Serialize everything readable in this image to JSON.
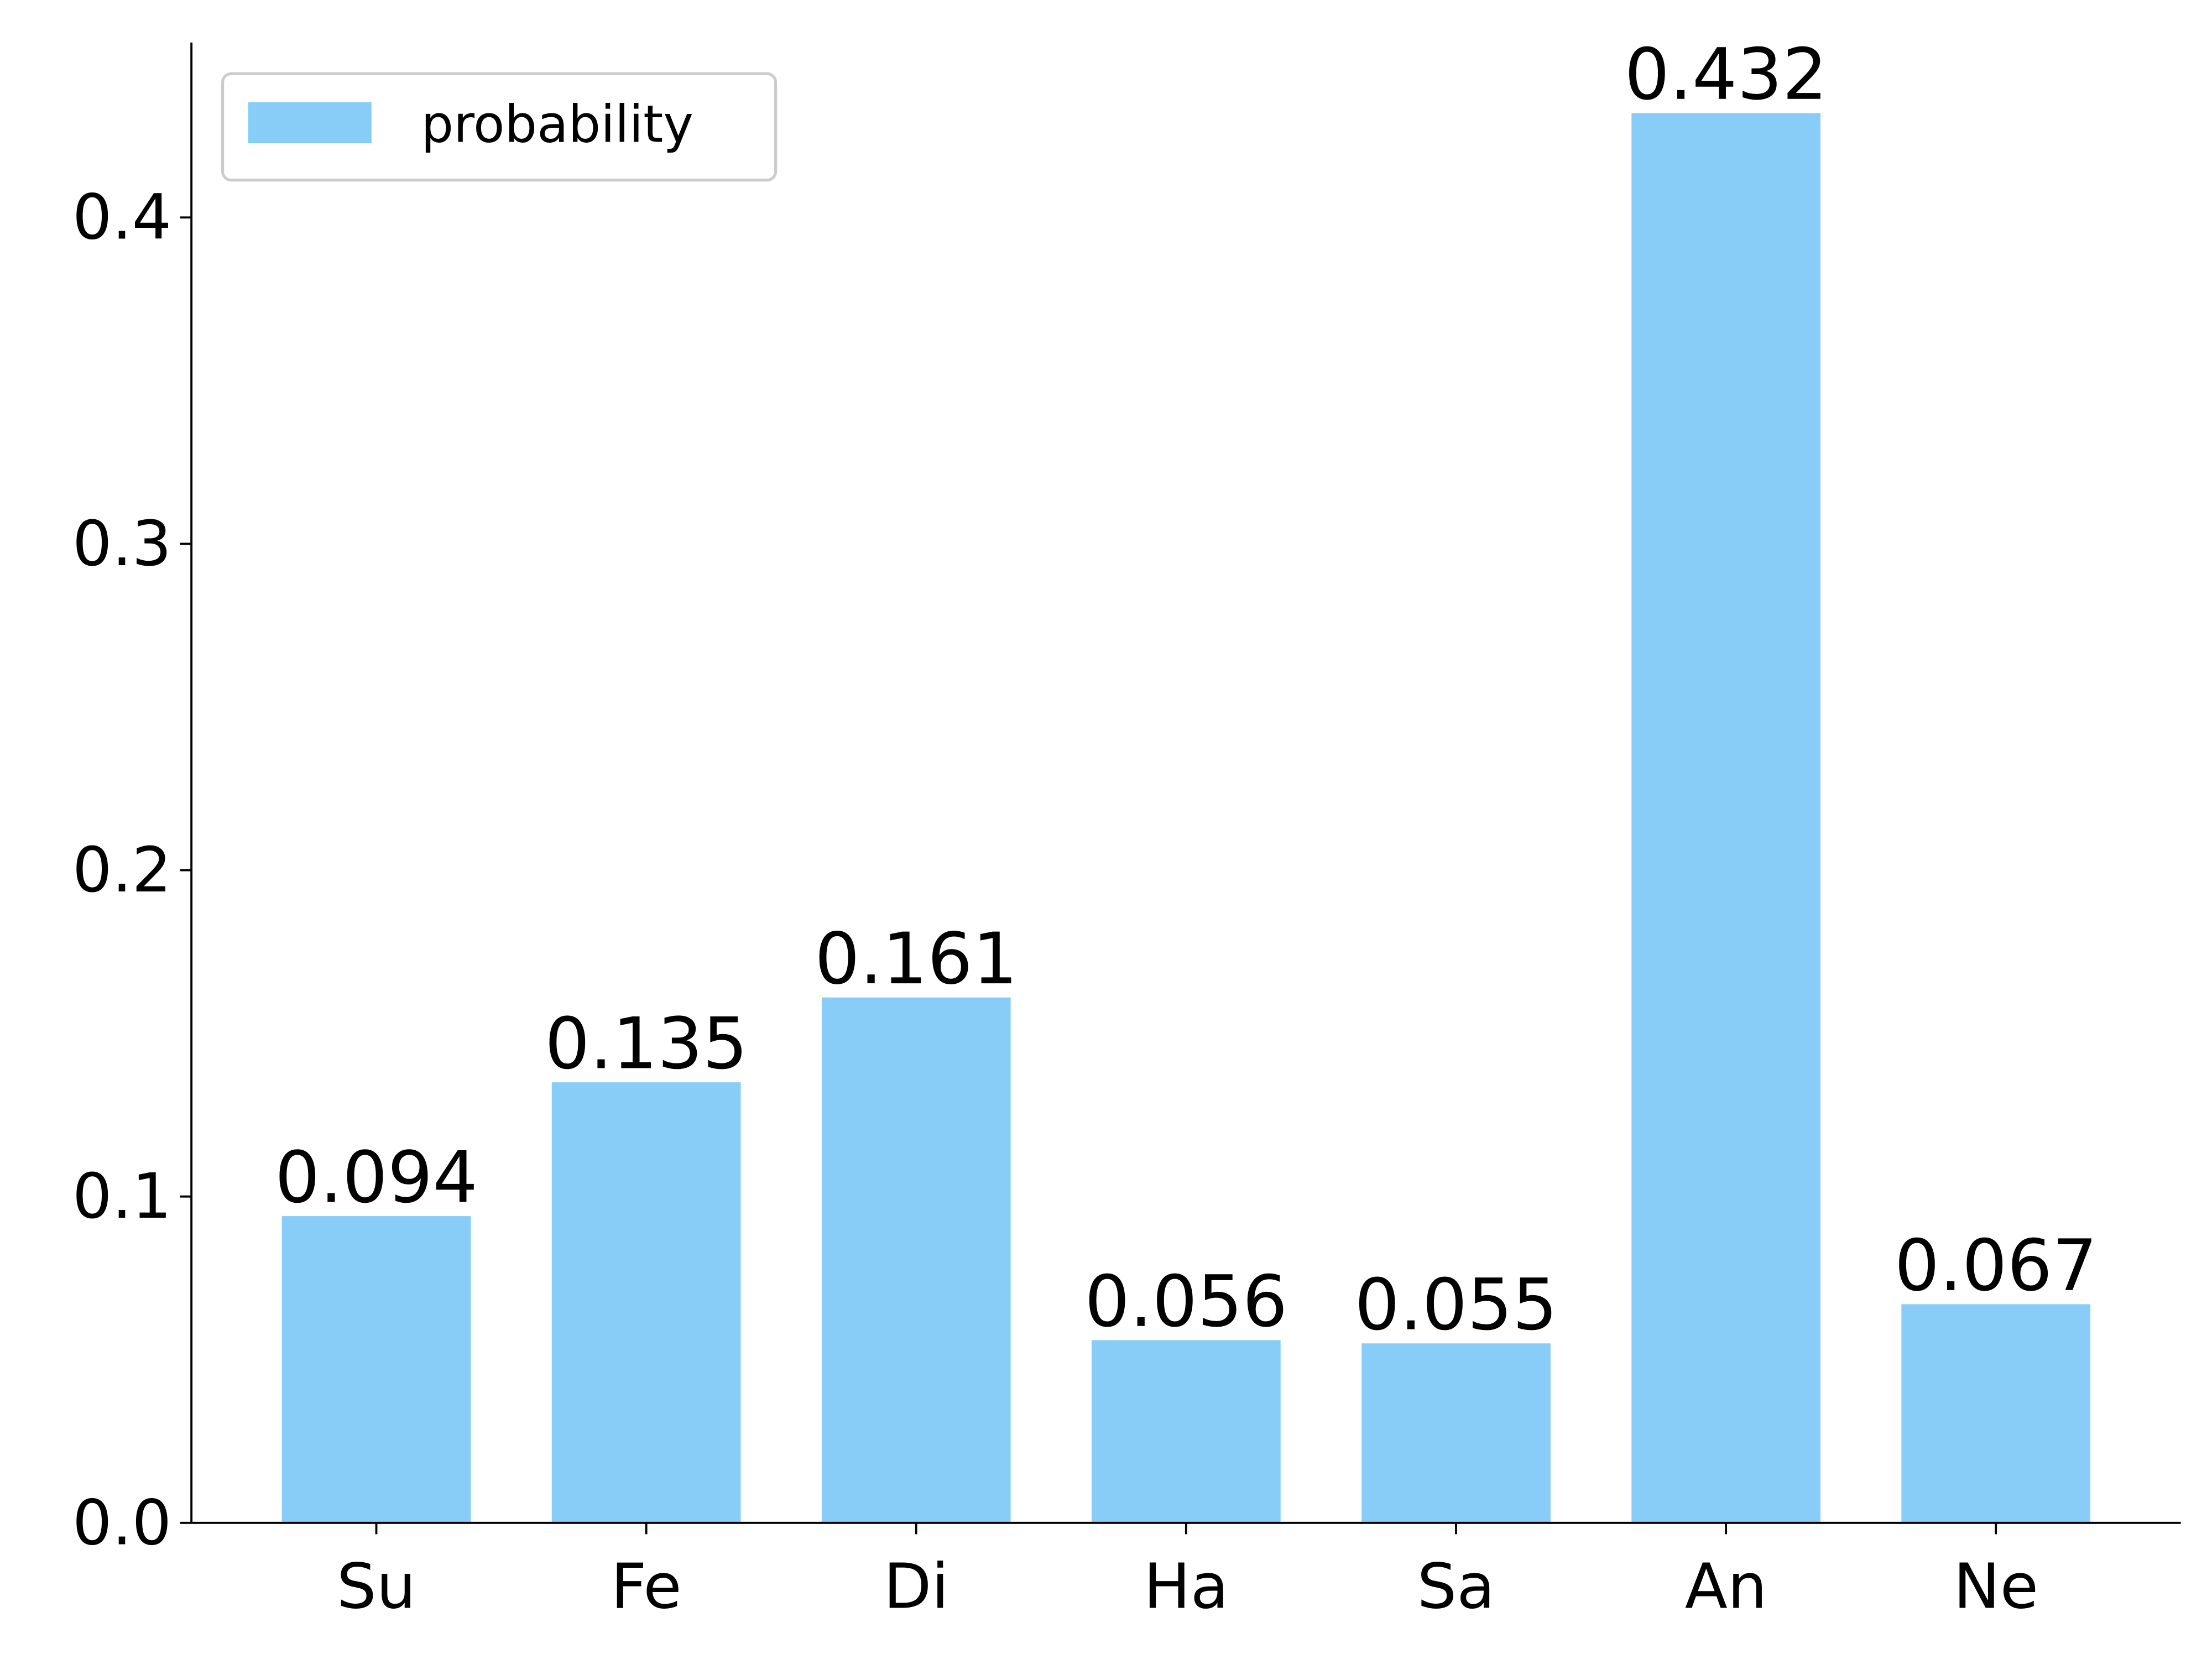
{
  "chart_data": {
    "type": "bar",
    "categories": [
      "Su",
      "Fe",
      "Di",
      "Ha",
      "Sa",
      "An",
      "Ne"
    ],
    "series": [
      {
        "name": "probability",
        "color": "#88cdf8",
        "values": [
          0.094,
          0.135,
          0.161,
          0.056,
          0.055,
          0.432,
          0.067
        ]
      }
    ],
    "ylim": [
      0,
      0.4536
    ],
    "yticks": [
      0.0,
      0.1,
      0.2,
      0.3,
      0.4
    ],
    "yticks_labels_note_free": null,
    "legend": "upper left",
    "grid": false
  }
}
